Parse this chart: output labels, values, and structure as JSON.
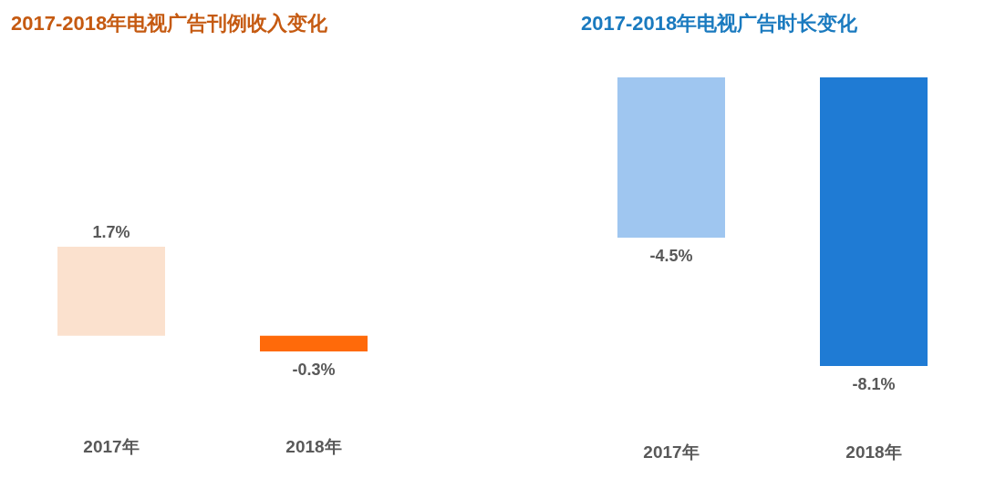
{
  "chart_data": [
    {
      "type": "bar",
      "title": "2017-2018年电视广告刊例收入变化",
      "categories": [
        "2017年",
        "2018年"
      ],
      "values": [
        1.7,
        -0.3
      ],
      "colors": [
        "#fbe1ce",
        "#ff6a0a"
      ],
      "value_labels": [
        "1.7%",
        "-0.3%"
      ]
    },
    {
      "type": "bar",
      "title": "2017-2018年电视广告时长变化",
      "categories": [
        "2017年",
        "2018年"
      ],
      "values": [
        -4.5,
        -8.1
      ],
      "colors": [
        "#9fc6f0",
        "#1f7bd4"
      ],
      "value_labels": [
        "-4.5%",
        "-8.1%"
      ]
    }
  ]
}
